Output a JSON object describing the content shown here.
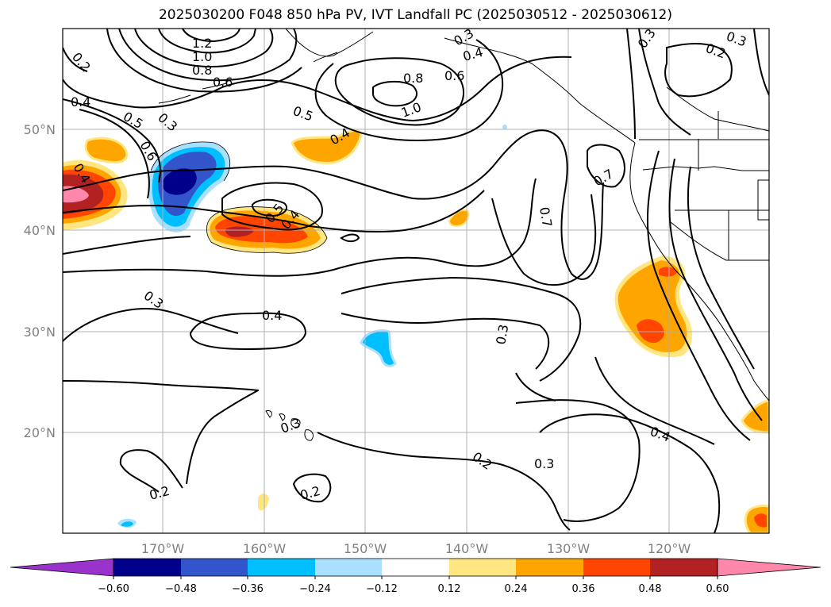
{
  "title": "2025030200 F048 850 hPa PV, IVT Landfall PC (2025030512 - 2025030612)",
  "lat_labels": [
    "50°N",
    "40°N",
    "30°N",
    "20°N"
  ],
  "lon_labels": [
    "170°W",
    "160°W",
    "150°W",
    "140°W",
    "130°W",
    "120°W"
  ],
  "colorbar": {
    "ticks": [
      "−0.60",
      "−0.48",
      "−0.36",
      "−0.24",
      "−0.12",
      "0.12",
      "0.24",
      "0.36",
      "0.48",
      "0.60"
    ],
    "colors": [
      "#9933cc",
      "#00008b",
      "#3355cc",
      "#00bfff",
      "#aae0ff",
      "#ffffff",
      "#ffe680",
      "#ffa500",
      "#ff4500",
      "#b22222",
      "#ff88aa",
      "#ff88aa"
    ]
  },
  "contour_labels": [
    "1.2",
    "1.0",
    "0.8",
    "0.6",
    "0.2",
    "0.4",
    "0.5",
    "0.3",
    "0.6",
    "0.4",
    "0.5",
    "0.4",
    "0.5",
    "0.4",
    "0.8",
    "0.6",
    "1.0",
    "0.3",
    "0.4",
    "0.3",
    "0.2",
    "0.3",
    "0.7",
    "0.7",
    "0.3",
    "0.4",
    "0.3",
    "0.2",
    "0.3",
    "0.4",
    "0.2",
    "0.2",
    "0.3"
  ],
  "colors": {
    "contour": "#000000",
    "grid": "#b0b0b0"
  }
}
